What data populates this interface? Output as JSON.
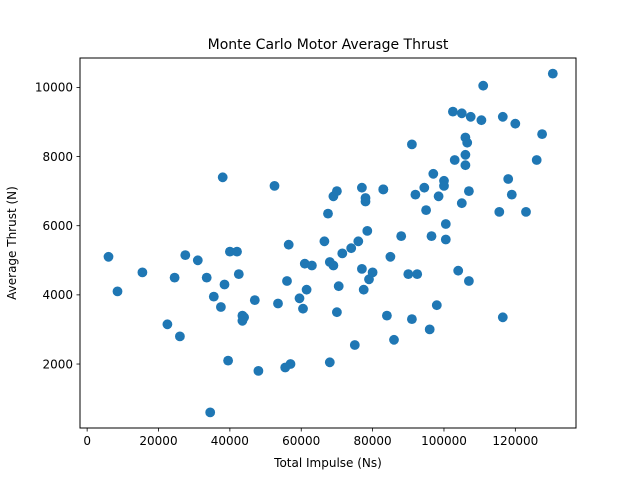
{
  "chart_data": {
    "type": "scatter",
    "title": "Monte Carlo Motor Average Thrust",
    "xlabel": "Total Impulse (Ns)",
    "ylabel": "Average Thrust (N)",
    "xlim": [
      -2000,
      137000
    ],
    "ylim": [
      150,
      10850
    ],
    "xticks": [
      0,
      20000,
      40000,
      60000,
      80000,
      100000,
      120000
    ],
    "yticks": [
      2000,
      4000,
      6000,
      8000,
      10000
    ],
    "grid": false,
    "legend": "none",
    "marker_color": "#1f77b4",
    "points": [
      [
        6000,
        5100
      ],
      [
        8500,
        4100
      ],
      [
        15500,
        4650
      ],
      [
        22500,
        3150
      ],
      [
        24500,
        4500
      ],
      [
        26000,
        2800
      ],
      [
        27500,
        5150
      ],
      [
        31000,
        5000
      ],
      [
        33500,
        4500
      ],
      [
        34500,
        600
      ],
      [
        35500,
        3950
      ],
      [
        37500,
        3650
      ],
      [
        38000,
        7400
      ],
      [
        38500,
        4300
      ],
      [
        39500,
        2100
      ],
      [
        40000,
        5250
      ],
      [
        42000,
        5250
      ],
      [
        42500,
        4600
      ],
      [
        43500,
        3250
      ],
      [
        43500,
        3400
      ],
      [
        44000,
        3350
      ],
      [
        47000,
        3850
      ],
      [
        48000,
        1800
      ],
      [
        52500,
        7150
      ],
      [
        53500,
        3750
      ],
      [
        55500,
        1900
      ],
      [
        56000,
        4400
      ],
      [
        56500,
        5450
      ],
      [
        57000,
        2000
      ],
      [
        59500,
        3900
      ],
      [
        60500,
        3600
      ],
      [
        61000,
        4900
      ],
      [
        61500,
        4150
      ],
      [
        63000,
        4850
      ],
      [
        66500,
        5550
      ],
      [
        67500,
        6350
      ],
      [
        68000,
        2050
      ],
      [
        68000,
        4950
      ],
      [
        69000,
        4850
      ],
      [
        69000,
        6850
      ],
      [
        70000,
        3500
      ],
      [
        70000,
        7000
      ],
      [
        70500,
        4250
      ],
      [
        71500,
        5200
      ],
      [
        74000,
        5350
      ],
      [
        75000,
        2550
      ],
      [
        76000,
        5550
      ],
      [
        77000,
        7100
      ],
      [
        77000,
        4750
      ],
      [
        77500,
        4150
      ],
      [
        78000,
        6700
      ],
      [
        78000,
        6800
      ],
      [
        78500,
        5850
      ],
      [
        79000,
        4450
      ],
      [
        80000,
        4650
      ],
      [
        83000,
        7050
      ],
      [
        83000,
        7050
      ],
      [
        84000,
        3400
      ],
      [
        85000,
        5100
      ],
      [
        86000,
        2700
      ],
      [
        88000,
        5700
      ],
      [
        90000,
        4600
      ],
      [
        91000,
        8350
      ],
      [
        91000,
        3300
      ],
      [
        92000,
        6900
      ],
      [
        92500,
        4600
      ],
      [
        94500,
        7100
      ],
      [
        95000,
        6450
      ],
      [
        96000,
        3000
      ],
      [
        96500,
        5700
      ],
      [
        97000,
        7500
      ],
      [
        98000,
        3700
      ],
      [
        98500,
        6850
      ],
      [
        100000,
        7300
      ],
      [
        100000,
        7150
      ],
      [
        100500,
        5600
      ],
      [
        100500,
        6050
      ],
      [
        102500,
        9300
      ],
      [
        103000,
        7900
      ],
      [
        104000,
        4700
      ],
      [
        105000,
        9250
      ],
      [
        105000,
        6650
      ],
      [
        106000,
        8550
      ],
      [
        106000,
        8050
      ],
      [
        106000,
        7750
      ],
      [
        106500,
        8400
      ],
      [
        107000,
        7000
      ],
      [
        107000,
        4400
      ],
      [
        107500,
        9150
      ],
      [
        110500,
        9050
      ],
      [
        111000,
        10050
      ],
      [
        115500,
        6400
      ],
      [
        116500,
        3350
      ],
      [
        116500,
        9150
      ],
      [
        118000,
        7350
      ],
      [
        119000,
        6900
      ],
      [
        120000,
        8950
      ],
      [
        123000,
        6400
      ],
      [
        126000,
        7900
      ],
      [
        127500,
        8650
      ],
      [
        130500,
        10400
      ]
    ]
  }
}
